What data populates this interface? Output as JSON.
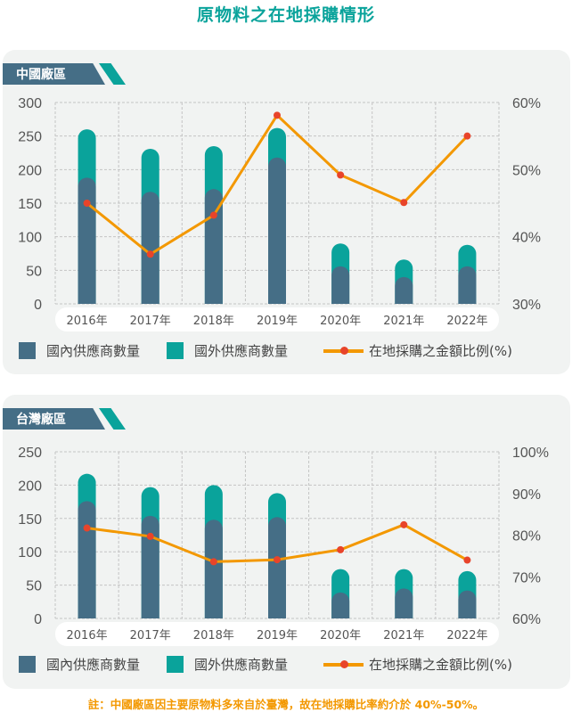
{
  "title": "原物料之在地採購情形",
  "legend": {
    "domestic": "國內供應商數量",
    "foreign": "國外供應商數量",
    "ratio": "在地採購之金額比例(%)"
  },
  "colors": {
    "domestic": "#456e86",
    "foreign": "#0aa39b",
    "line": "#f39800",
    "marker": "#e8442a"
  },
  "note": "註：中國廠區因主要原物料多來自於臺灣，故在地採購比率約介於 40%-50%。",
  "chart_data": [
    {
      "type": "bar",
      "title": "中國廠區",
      "categories": [
        "2016年",
        "2017年",
        "2018年",
        "2019年",
        "2020年",
        "2021年",
        "2022年"
      ],
      "series": [
        {
          "name": "國內供應商數量",
          "values": [
            188,
            167,
            171,
            218,
            56,
            40,
            56
          ]
        },
        {
          "name": "國外供應商數量 (total stacked top)",
          "values": [
            260,
            231,
            235,
            262,
            90,
            66,
            88
          ]
        },
        {
          "name": "在地採購之金額比例(%)",
          "axis": "right",
          "values": [
            45,
            37.4,
            43.2,
            58.1,
            49.2,
            45.1,
            55
          ]
        }
      ],
      "ylim": [
        0,
        300
      ],
      "yticks": [
        "0",
        "50",
        "100",
        "150",
        "200",
        "250",
        "300"
      ],
      "y2lim": [
        30,
        60
      ],
      "y2ticks": [
        "30%",
        "40%",
        "50%",
        "60%"
      ],
      "grid": true,
      "legend": "bottom"
    },
    {
      "type": "bar",
      "title": "台灣廠區",
      "categories": [
        "2016年",
        "2017年",
        "2018年",
        "2019年",
        "2020年",
        "2021年",
        "2022年"
      ],
      "series": [
        {
          "name": "國內供應商數量",
          "values": [
            176,
            154,
            148,
            152,
            39,
            45,
            42
          ]
        },
        {
          "name": "國外供應商數量 (total stacked top)",
          "values": [
            217,
            197,
            200,
            188,
            74,
            74,
            71
          ]
        },
        {
          "name": "在地採購之金額比例(%)",
          "axis": "right",
          "values": [
            81.7,
            79.7,
            73.6,
            74.1,
            76.5,
            82.5,
            74
          ]
        }
      ],
      "ylim": [
        0,
        250
      ],
      "yticks": [
        "0",
        "50",
        "100",
        "150",
        "200",
        "250"
      ],
      "y2lim": [
        60,
        100
      ],
      "y2ticks": [
        "60%",
        "70%",
        "80%",
        "90%",
        "100%"
      ],
      "grid": true,
      "legend": "bottom"
    }
  ]
}
